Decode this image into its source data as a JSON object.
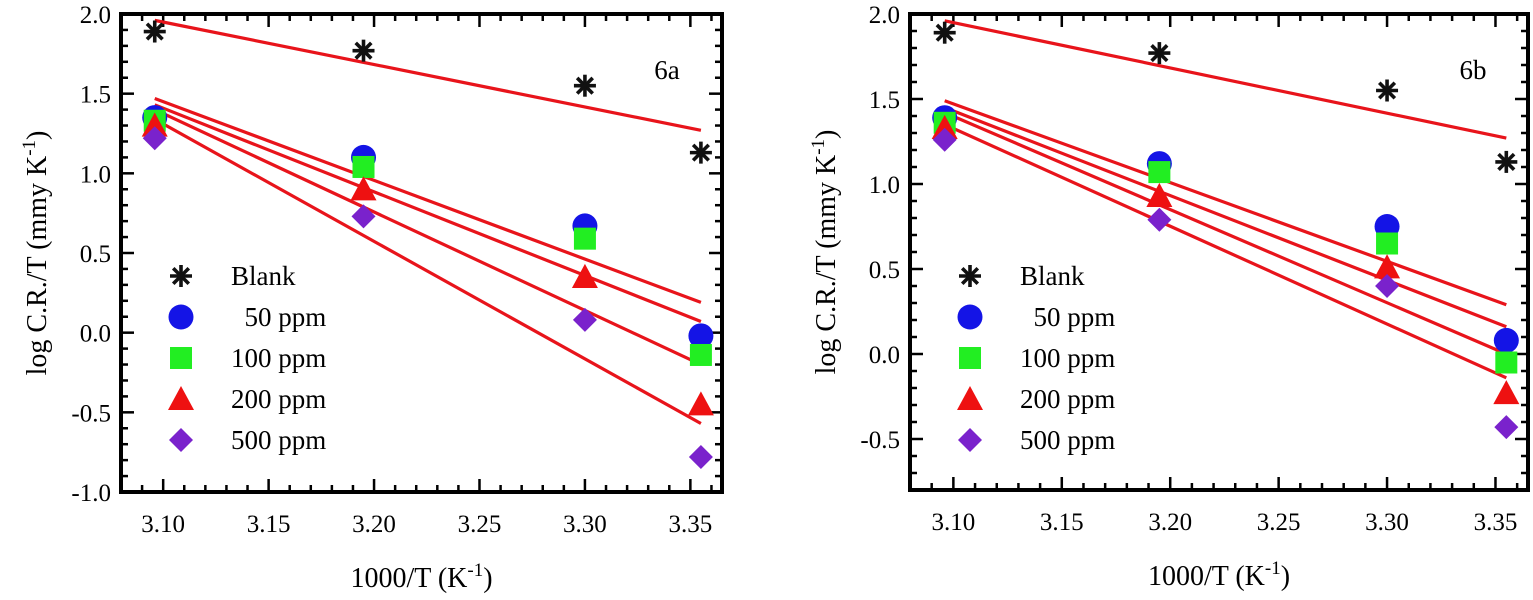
{
  "chart_data": [
    {
      "type": "scatter",
      "panel_label": "6a",
      "xlabel_main": "1000/T (K",
      "xlabel_sup": "-1",
      "xlabel_end": ")",
      "ylabel_main": "log C.R./T (mmy K",
      "ylabel_sup": "-1",
      "ylabel_end": ")",
      "xlim": [
        3.08,
        3.365
      ],
      "ylim": [
        -1.0,
        2.0
      ],
      "xticks": [
        3.1,
        3.15,
        3.2,
        3.25,
        3.3,
        3.35
      ],
      "xtick_labels": [
        "3.10",
        "3.15",
        "3.20",
        "3.25",
        "3.30",
        "3.35"
      ],
      "yticks": [
        -1.0,
        -0.5,
        0.0,
        0.5,
        1.0,
        1.5,
        2.0
      ],
      "ytick_labels": [
        "-1.0",
        "-0.5",
        "0.0",
        "0.5",
        "1.0",
        "1.5",
        "2.0"
      ],
      "legend_position": "lower-left",
      "series": [
        {
          "name": "Blank",
          "marker": "asterisk",
          "color": "#111111",
          "x": [
            3.096,
            3.195,
            3.3,
            3.355
          ],
          "y": [
            1.89,
            1.77,
            1.55,
            1.13
          ],
          "fit": [
            1.96,
            1.27
          ]
        },
        {
          "name": "  50 ppm",
          "marker": "circle",
          "color": "#1414e6",
          "x": [
            3.096,
            3.195,
            3.3,
            3.355
          ],
          "y": [
            1.35,
            1.1,
            0.67,
            -0.02
          ],
          "fit": [
            1.47,
            0.19
          ]
        },
        {
          "name": "100 ppm",
          "marker": "square",
          "color": "#22ee22",
          "x": [
            3.096,
            3.195,
            3.3,
            3.355
          ],
          "y": [
            1.33,
            1.04,
            0.59,
            -0.14
          ],
          "fit": [
            1.43,
            0.07
          ]
        },
        {
          "name": "200 ppm",
          "marker": "triangle",
          "color": "#ee1111",
          "x": [
            3.096,
            3.195,
            3.3,
            3.355
          ],
          "y": [
            1.3,
            0.9,
            0.35,
            -0.45
          ],
          "fit": [
            1.4,
            -0.2
          ]
        },
        {
          "name": "500 ppm",
          "marker": "diamond",
          "color": "#7a22cc",
          "x": [
            3.096,
            3.195,
            3.3,
            3.355
          ],
          "y": [
            1.22,
            0.73,
            0.08,
            -0.78
          ],
          "fit": [
            1.34,
            -0.57
          ]
        }
      ]
    },
    {
      "type": "scatter",
      "panel_label": "6b",
      "xlabel_main": "1000/T (K",
      "xlabel_sup": "-1",
      "xlabel_end": ")",
      "ylabel_main": "log C.R./T (mmy K",
      "ylabel_sup": "-1",
      "ylabel_end": ")",
      "xlim": [
        3.08,
        3.365
      ],
      "ylim": [
        -0.8,
        2.0
      ],
      "xticks": [
        3.1,
        3.15,
        3.2,
        3.25,
        3.3,
        3.35
      ],
      "xtick_labels": [
        "3.10",
        "3.15",
        "3.20",
        "3.25",
        "3.30",
        "3.35"
      ],
      "yticks": [
        -0.5,
        0.0,
        0.5,
        1.0,
        1.5,
        2.0
      ],
      "ytick_labels": [
        "-0.5",
        "0.0",
        "0.5",
        "1.0",
        "1.5",
        "2.0"
      ],
      "legend_position": "lower-left",
      "series": [
        {
          "name": "Blank",
          "marker": "asterisk",
          "color": "#111111",
          "x": [
            3.096,
            3.195,
            3.3,
            3.355
          ],
          "y": [
            1.89,
            1.77,
            1.55,
            1.13
          ],
          "fit": [
            1.96,
            1.27
          ]
        },
        {
          "name": "  50 ppm",
          "marker": "circle",
          "color": "#1414e6",
          "x": [
            3.096,
            3.195,
            3.3,
            3.355
          ],
          "y": [
            1.39,
            1.12,
            0.75,
            0.08
          ],
          "fit": [
            1.49,
            0.29
          ]
        },
        {
          "name": "100 ppm",
          "marker": "square",
          "color": "#22ee22",
          "x": [
            3.096,
            3.195,
            3.3,
            3.355
          ],
          "y": [
            1.36,
            1.07,
            0.65,
            -0.05
          ],
          "fit": [
            1.45,
            0.16
          ]
        },
        {
          "name": "200 ppm",
          "marker": "triangle",
          "color": "#ee1111",
          "x": [
            3.096,
            3.195,
            3.3,
            3.355
          ],
          "y": [
            1.33,
            0.93,
            0.51,
            -0.23
          ],
          "fit": [
            1.42,
            0.0
          ]
        },
        {
          "name": "500 ppm",
          "marker": "diamond",
          "color": "#7a22cc",
          "x": [
            3.096,
            3.195,
            3.3,
            3.355
          ],
          "y": [
            1.26,
            0.79,
            0.4,
            -0.43
          ],
          "fit": [
            1.35,
            -0.14
          ]
        }
      ]
    }
  ]
}
